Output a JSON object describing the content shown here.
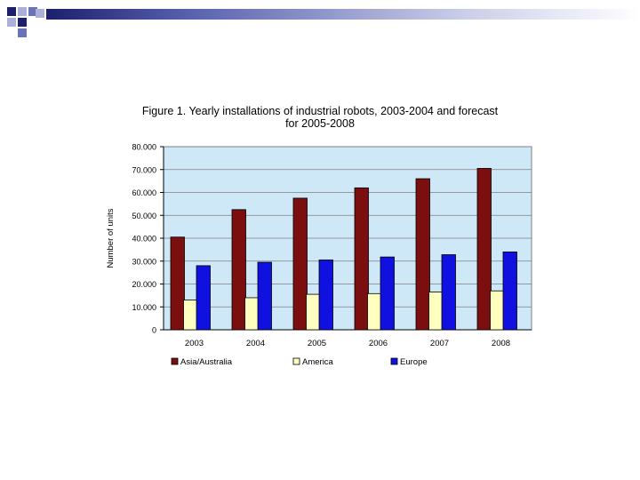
{
  "slide": {
    "accent_dark": "#1c1f6b",
    "accent_light": "#aab0d8"
  },
  "chart_data": {
    "type": "bar",
    "title_line1": "Figure 1.  Yearly installations of industrial robots, 2003-2004 and forecast",
    "title_line2": "for 2005-2008",
    "xlabel": "",
    "ylabel": "Number of units",
    "ylim": [
      0,
      80000
    ],
    "yticks": [
      0,
      10000,
      20000,
      30000,
      40000,
      50000,
      60000,
      70000,
      80000
    ],
    "ytick_labels": [
      "0",
      "10.000",
      "20.000",
      "30.000",
      "40.000",
      "50.000",
      "60.000",
      "70.000",
      "80.000"
    ],
    "categories": [
      "2003",
      "2004",
      "2005",
      "2006",
      "2007",
      "2008"
    ],
    "series": [
      {
        "name": "Asia/Australia",
        "color": "#7b0f0f",
        "values": [
          40500,
          52500,
          57500,
          62000,
          66000,
          70500
        ]
      },
      {
        "name": "America",
        "color": "#ffffc0",
        "values": [
          13000,
          14000,
          15500,
          15800,
          16500,
          17000
        ]
      },
      {
        "name": "Europe",
        "color": "#1010e0",
        "values": [
          28000,
          29500,
          30500,
          31800,
          32800,
          34000
        ]
      }
    ],
    "plot_background": "#cfe8f7",
    "grid": true,
    "legend_position": "bottom"
  }
}
